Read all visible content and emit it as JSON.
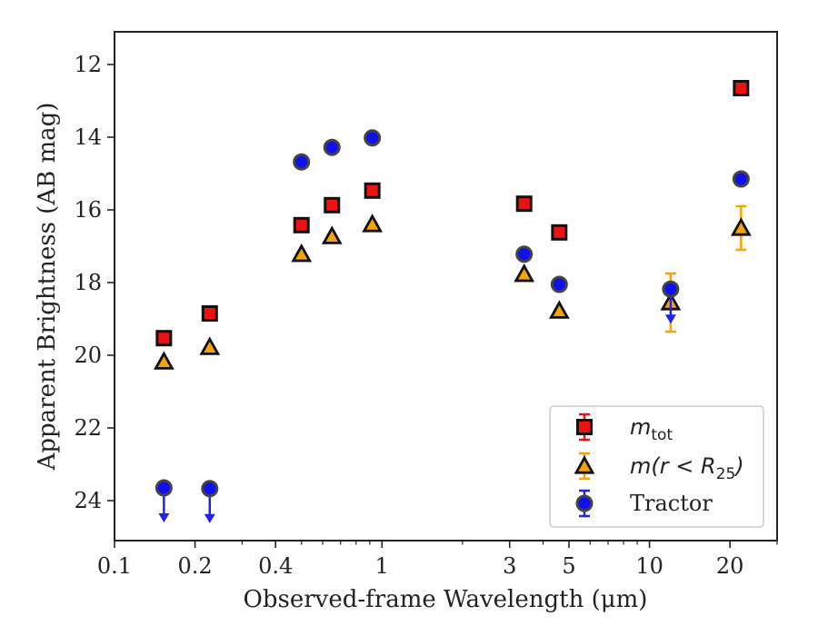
{
  "chart_data": {
    "type": "scatter",
    "xlabel": "Observed-frame Wavelength (μm)",
    "ylabel": "Apparent Brightness (AB mag)",
    "xscale": "log",
    "xlim": [
      0.1,
      30
    ],
    "ylim": [
      25.1,
      11.1
    ],
    "y_inverted": true,
    "x_ticks": [
      {
        "value": 0.1,
        "label": "0.1"
      },
      {
        "value": 0.2,
        "label": "0.2"
      },
      {
        "value": 0.4,
        "label": "0.4"
      },
      {
        "value": 1,
        "label": "1"
      },
      {
        "value": 3,
        "label": "3"
      },
      {
        "value": 5,
        "label": "5"
      },
      {
        "value": 10,
        "label": "10"
      },
      {
        "value": 20,
        "label": "20"
      }
    ],
    "y_ticks": [
      12,
      14,
      16,
      18,
      20,
      22,
      24
    ],
    "grid": false,
    "legend_position": "lower-right",
    "series": [
      {
        "name": "m_tot",
        "legend_main": "m",
        "legend_sub": "tot",
        "marker": "square",
        "color": "#ee1111",
        "error_color": "#ee1111",
        "points": [
          {
            "x": 0.153,
            "y": 19.53
          },
          {
            "x": 0.227,
            "y": 18.85
          },
          {
            "x": 0.5,
            "y": 16.42
          },
          {
            "x": 0.65,
            "y": 15.87
          },
          {
            "x": 0.92,
            "y": 15.47
          },
          {
            "x": 3.4,
            "y": 15.83
          },
          {
            "x": 4.6,
            "y": 16.62
          },
          {
            "x": 22.0,
            "y": 12.65
          }
        ]
      },
      {
        "name": "m(r<R_25)",
        "legend_main": "m(r < R",
        "legend_sub": "25",
        "legend_tail": ")",
        "marker": "triangle",
        "color": "#f5a30a",
        "error_color": "#f5a30a",
        "points": [
          {
            "x": 0.153,
            "y": 20.18
          },
          {
            "x": 0.227,
            "y": 19.78
          },
          {
            "x": 0.5,
            "y": 17.22
          },
          {
            "x": 0.65,
            "y": 16.73
          },
          {
            "x": 0.92,
            "y": 16.4
          },
          {
            "x": 3.4,
            "y": 17.77
          },
          {
            "x": 4.6,
            "y": 18.78
          },
          {
            "x": 12.0,
            "y": 18.55,
            "err": 0.8
          },
          {
            "x": 22.0,
            "y": 16.5,
            "err": 0.6
          }
        ]
      },
      {
        "name": "Tractor",
        "marker": "circle",
        "color": "#1010ee",
        "error_color": "#2222ee",
        "points": [
          {
            "x": 0.153,
            "y": 23.65,
            "upper_limit": true
          },
          {
            "x": 0.227,
            "y": 23.67,
            "upper_limit": true
          },
          {
            "x": 0.5,
            "y": 14.68
          },
          {
            "x": 0.65,
            "y": 14.28
          },
          {
            "x": 0.92,
            "y": 14.02
          },
          {
            "x": 3.4,
            "y": 17.22
          },
          {
            "x": 4.6,
            "y": 18.05
          },
          {
            "x": 12.0,
            "y": 18.18,
            "upper_limit": true
          },
          {
            "x": 22.0,
            "y": 15.15
          }
        ]
      }
    ],
    "legend": [
      {
        "label": "Tractor"
      }
    ]
  }
}
